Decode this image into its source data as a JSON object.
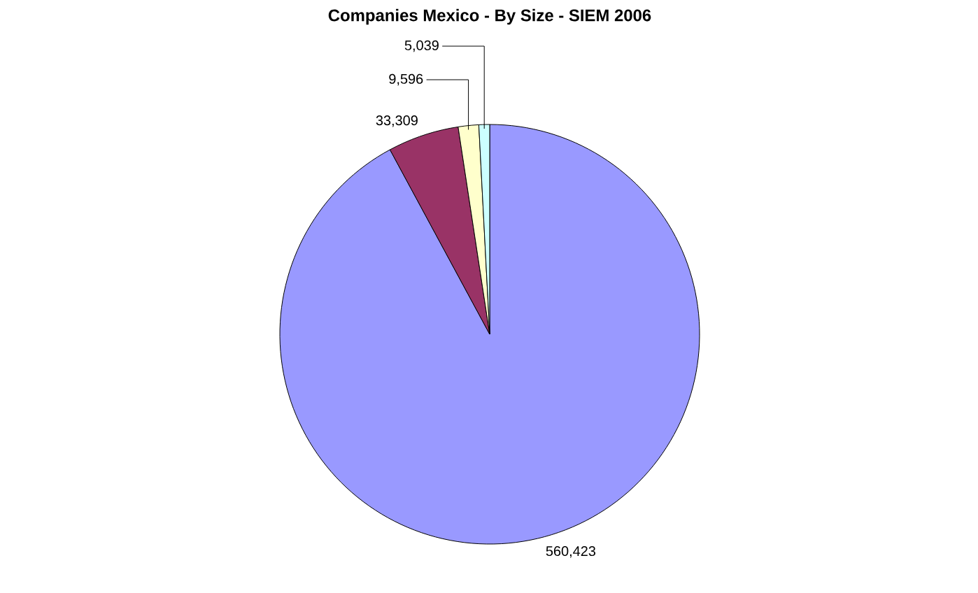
{
  "chart_data": {
    "type": "pie",
    "title": "Companies Mexico - By Size - SIEM 2006",
    "categories": [
      null,
      null,
      null,
      null
    ],
    "values": [
      560423,
      33309,
      9596,
      5039
    ],
    "colors": [
      "#9999ff",
      "#993366",
      "#ffffcc",
      "#ccffff"
    ],
    "value_labels": [
      "560,423",
      "33,309",
      "9,596",
      "5,039"
    ]
  }
}
